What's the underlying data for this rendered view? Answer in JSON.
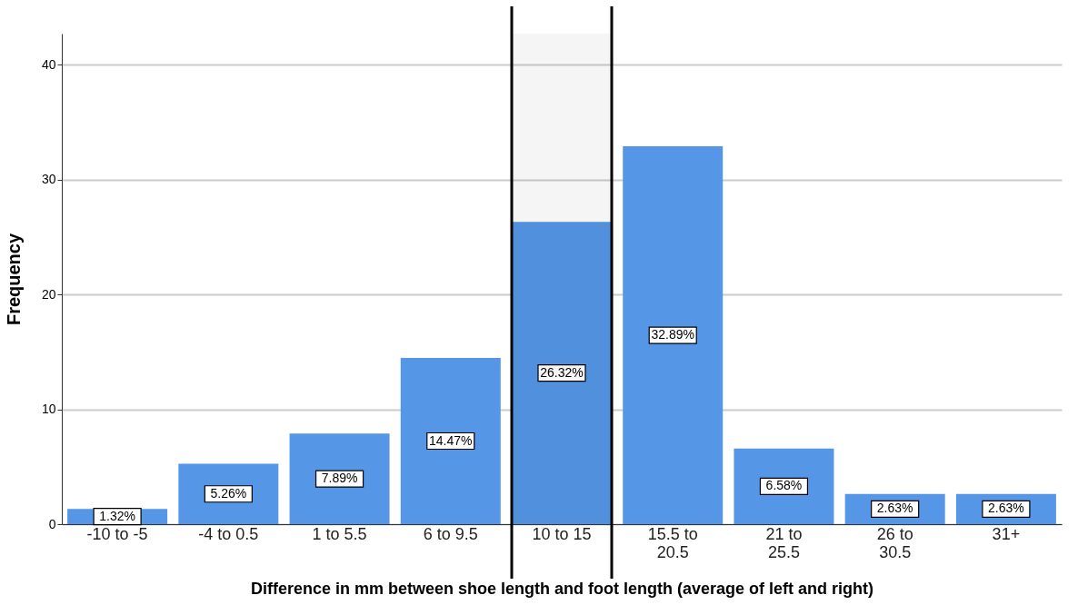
{
  "chart_data": {
    "type": "bar",
    "xlabel": "Difference in mm between shoe length and foot length (average of left and right)",
    "ylabel": "Frequency",
    "categories": [
      "-10 to -5",
      "-4 to 0.5",
      "1 to 5.5",
      "6 to 9.5",
      "10 to 15",
      "15.5 to 20.5",
      "21 to 25.5",
      "26 to 30.5",
      "31+"
    ],
    "values": [
      1.32,
      5.26,
      7.89,
      14.47,
      26.32,
      32.89,
      6.58,
      2.63,
      2.63
    ],
    "value_labels": [
      "1.32%",
      "5.26%",
      "7.89%",
      "14.47%",
      "26.32%",
      "32.89%",
      "6.58%",
      "2.63%",
      "2.63%"
    ],
    "color": "#5596e6",
    "ylim": [
      0,
      42.7
    ],
    "yticks": [
      0,
      10,
      20,
      30,
      40
    ],
    "grid": "y",
    "bands": [
      {
        "axis": "x",
        "from": "10 to 15",
        "to": "10 to 15",
        "color": "#000000"
      }
    ]
  }
}
